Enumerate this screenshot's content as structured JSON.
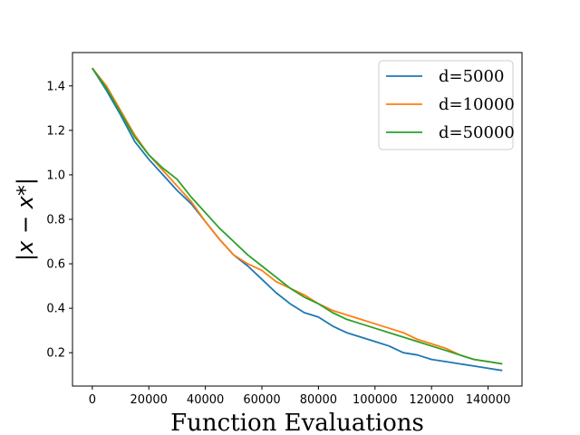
{
  "chart_data": {
    "type": "line",
    "title": "",
    "xlabel": "Function Evaluations",
    "ylabel": "|x − x*|",
    "xlim": [
      -7000,
      152000
    ],
    "ylim": [
      0.05,
      1.55
    ],
    "xticks": [
      0,
      20000,
      40000,
      60000,
      80000,
      100000,
      120000,
      140000
    ],
    "yticks": [
      0.2,
      0.4,
      0.6,
      0.8,
      1.0,
      1.2,
      1.4
    ],
    "grid": false,
    "legend_position": "top-right",
    "series": [
      {
        "name": "d=5000",
        "color": "#1f77b4",
        "x": [
          0,
          5000,
          10000,
          15000,
          20000,
          25000,
          30000,
          35000,
          40000,
          45000,
          50000,
          55000,
          60000,
          65000,
          70000,
          75000,
          80000,
          85000,
          90000,
          95000,
          100000,
          105000,
          110000,
          115000,
          120000,
          125000,
          130000,
          135000,
          140000,
          145000
        ],
        "values": [
          1.48,
          1.38,
          1.27,
          1.15,
          1.07,
          1.0,
          0.93,
          0.87,
          0.79,
          0.71,
          0.64,
          0.59,
          0.53,
          0.47,
          0.42,
          0.38,
          0.36,
          0.32,
          0.29,
          0.27,
          0.25,
          0.23,
          0.2,
          0.19,
          0.17,
          0.16,
          0.15,
          0.14,
          0.13,
          0.12
        ]
      },
      {
        "name": "d=10000",
        "color": "#ff7f0e",
        "x": [
          0,
          5000,
          10000,
          15000,
          20000,
          25000,
          30000,
          35000,
          40000,
          45000,
          50000,
          55000,
          60000,
          65000,
          70000,
          75000,
          80000,
          85000,
          90000,
          95000,
          100000,
          105000,
          110000,
          115000,
          120000,
          125000,
          130000,
          135000,
          140000,
          145000
        ],
        "values": [
          1.48,
          1.4,
          1.29,
          1.18,
          1.09,
          1.02,
          0.95,
          0.88,
          0.79,
          0.71,
          0.64,
          0.6,
          0.57,
          0.52,
          0.49,
          0.46,
          0.42,
          0.39,
          0.37,
          0.35,
          0.33,
          0.31,
          0.29,
          0.26,
          0.24,
          0.22,
          0.19,
          0.17,
          0.16,
          0.15
        ]
      },
      {
        "name": "d=50000",
        "color": "#2ca02c",
        "x": [
          0,
          5000,
          10000,
          15000,
          20000,
          25000,
          30000,
          35000,
          40000,
          45000,
          50000,
          55000,
          60000,
          65000,
          70000,
          75000,
          80000,
          85000,
          90000,
          95000,
          100000,
          105000,
          110000,
          115000,
          120000,
          125000,
          130000,
          135000,
          140000,
          145000
        ],
        "values": [
          1.48,
          1.39,
          1.28,
          1.17,
          1.09,
          1.03,
          0.98,
          0.9,
          0.83,
          0.76,
          0.7,
          0.64,
          0.59,
          0.54,
          0.49,
          0.45,
          0.42,
          0.38,
          0.35,
          0.33,
          0.31,
          0.29,
          0.27,
          0.25,
          0.23,
          0.21,
          0.19,
          0.17,
          0.16,
          0.15
        ]
      }
    ]
  }
}
